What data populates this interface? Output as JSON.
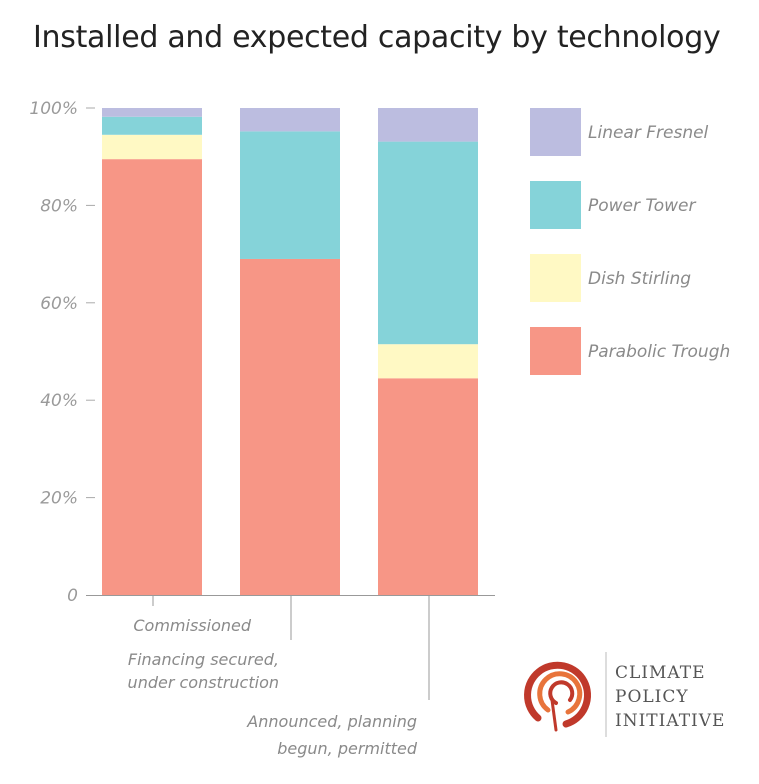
{
  "chart_data": {
    "type": "bar",
    "stacked": true,
    "title": "Installed and expected capacity by technology",
    "categories": [
      [
        "Commissioned"
      ],
      [
        "Financing secured,",
        "under construction"
      ],
      [
        "Announced, planning",
        "begun, permitted"
      ]
    ],
    "series": [
      {
        "name": "Parabolic Trough",
        "color": "#f79686",
        "values": [
          89.5,
          69,
          44.5
        ]
      },
      {
        "name": "Dish Stirling",
        "color": "#fff9c4",
        "values": [
          5,
          0,
          7
        ]
      },
      {
        "name": "Power Tower",
        "color": "#85d3d9",
        "values": [
          3.7,
          26.2,
          41.6
        ]
      },
      {
        "name": "Linear Fresnel",
        "color": "#bcbde0",
        "values": [
          1.8,
          4.8,
          6.9
        ]
      }
    ],
    "legend_order": [
      "Linear Fresnel",
      "Power Tower",
      "Dish Stirling",
      "Parabolic Trough"
    ],
    "ylim": [
      0,
      100
    ],
    "yticks": [
      {
        "value": 0,
        "label": "0"
      },
      {
        "value": 20,
        "label": "20%"
      },
      {
        "value": 40,
        "label": "40%"
      },
      {
        "value": 60,
        "label": "60%"
      },
      {
        "value": 80,
        "label": "80%"
      },
      {
        "value": 100,
        "label": "100%"
      }
    ],
    "legend_position": "right",
    "grid": false
  },
  "logo": {
    "lines": [
      "CLIMATE",
      "POLICY",
      "INITIATIVE"
    ],
    "colors": {
      "dark": "#c0392b",
      "light": "#e8743b"
    }
  }
}
